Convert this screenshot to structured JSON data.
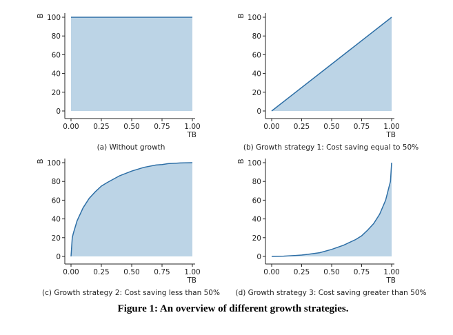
{
  "figure_caption": "Figure 1: An overview of different growth strategies.",
  "colors": {
    "line": "#2e6fa6",
    "fill": "#bcd4e6",
    "axis": "#222222"
  },
  "chart_data": [
    {
      "type": "area",
      "caption": "(a) Without growth",
      "xlabel": "TB",
      "ylabel": "B",
      "xlim": [
        0,
        1
      ],
      "ylim": [
        0,
        100
      ],
      "xticks": [
        "0.00",
        "0.25",
        "0.50",
        "0.75",
        "1.00"
      ],
      "yticks": [
        "0",
        "20",
        "40",
        "60",
        "80",
        "100"
      ],
      "grid": false,
      "x": [
        0,
        1
      ],
      "y": [
        100,
        100
      ]
    },
    {
      "type": "area",
      "caption": "(b) Growth strategy 1: Cost saving equal to 50%",
      "xlabel": "TB",
      "ylabel": "B",
      "xlim": [
        0,
        1
      ],
      "ylim": [
        0,
        100
      ],
      "xticks": [
        "0.00",
        "0.25",
        "0.50",
        "0.75",
        "1.00"
      ],
      "yticks": [
        "0",
        "20",
        "40",
        "60",
        "80",
        "100"
      ],
      "grid": false,
      "x": [
        0,
        1
      ],
      "y": [
        0,
        100
      ]
    },
    {
      "type": "area",
      "caption": "(c) Growth strategy 2: Cost saving less than 50%",
      "xlabel": "TB",
      "ylabel": "B",
      "xlim": [
        0,
        1
      ],
      "ylim": [
        0,
        100
      ],
      "xticks": [
        "0.00",
        "0.25",
        "0.50",
        "0.75",
        "1.00"
      ],
      "yticks": [
        "0",
        "20",
        "40",
        "60",
        "80",
        "100"
      ],
      "grid": false,
      "x": [
        0,
        0.01,
        0.02,
        0.05,
        0.1,
        0.15,
        0.2,
        0.25,
        0.3,
        0.4,
        0.5,
        0.6,
        0.7,
        0.75,
        0.8,
        0.9,
        1.0
      ],
      "y": [
        0,
        20,
        25,
        38,
        52,
        62,
        69,
        75,
        79,
        86,
        91,
        95,
        97.5,
        98,
        99,
        99.7,
        100
      ]
    },
    {
      "type": "area",
      "caption": "(d) Growth strategy 3: Cost saving greater than 50%",
      "xlabel": "TB",
      "ylabel": "B",
      "xlim": [
        0,
        1
      ],
      "ylim": [
        0,
        100
      ],
      "xticks": [
        "0.00",
        "0.25",
        "0.50",
        "0.75",
        "1.00"
      ],
      "yticks": [
        "0",
        "20",
        "40",
        "60",
        "80",
        "100"
      ],
      "grid": false,
      "x": [
        0,
        0.1,
        0.2,
        0.25,
        0.3,
        0.4,
        0.5,
        0.6,
        0.7,
        0.75,
        0.8,
        0.85,
        0.9,
        0.95,
        0.98,
        0.99,
        1.0
      ],
      "y": [
        0,
        0.3,
        1,
        1.5,
        2.2,
        4,
        7.5,
        12,
        18,
        22,
        28,
        35,
        45,
        60,
        75,
        80,
        100
      ]
    }
  ]
}
